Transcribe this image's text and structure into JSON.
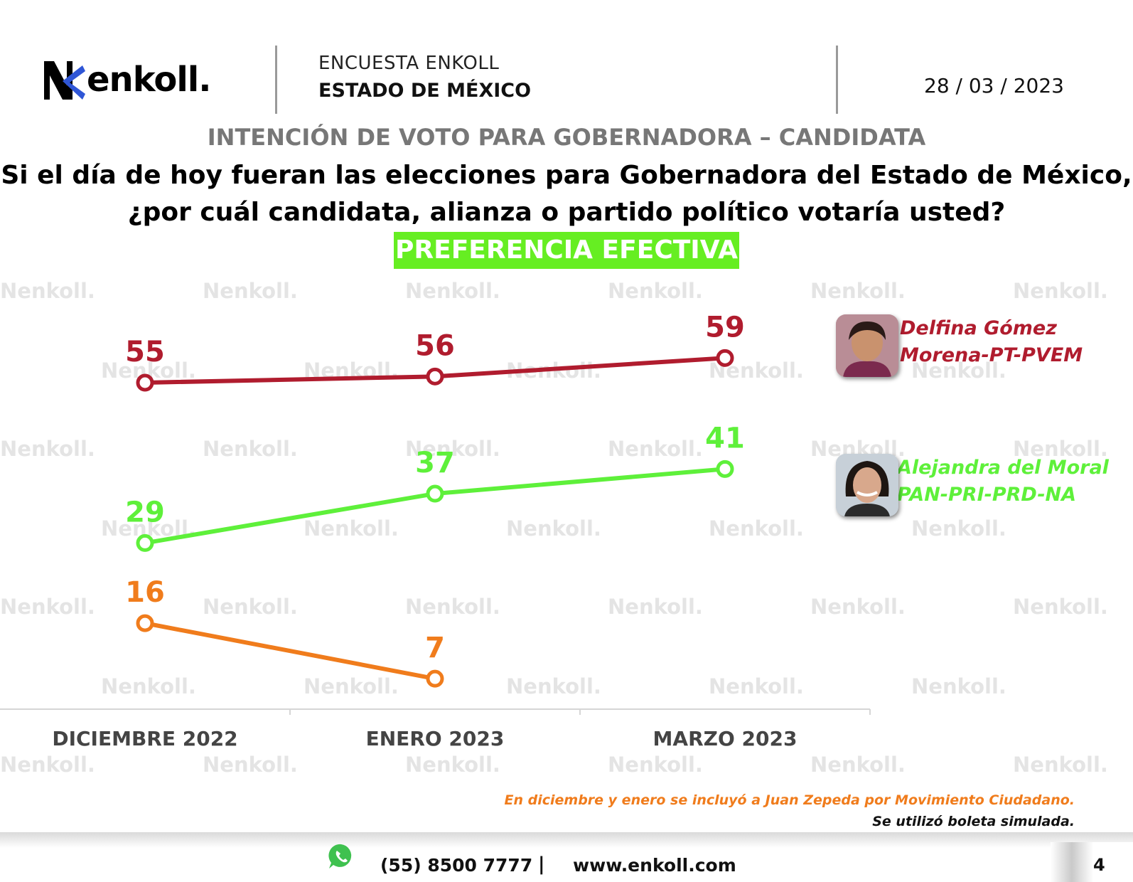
{
  "header": {
    "brand": "enkoll.",
    "survey_line": "ENCUESTA ENKOLL",
    "region_line": "ESTADO DE MÉXICO",
    "date": "28 / 03 / 2023"
  },
  "section_title": "INTENCIÓN DE VOTO PARA GOBERNADORA – CANDIDATA",
  "question": {
    "line1": "Si el día de hoy fueran las elecciones para Gobernadora del Estado de México,",
    "line2": "¿por cuál candidata, alianza o partido político votaría usted?"
  },
  "badge": "PREFERENCIA EFECTIVA",
  "watermark_text": "enkoll.",
  "chart_data": {
    "type": "line",
    "title": "PREFERENCIA EFECTIVA",
    "categories": [
      "DICIEMBRE 2022",
      "ENERO 2023",
      "MARZO 2023"
    ],
    "ylim": [
      0,
      65
    ],
    "grid": false,
    "series": [
      {
        "name": "Delfina Gómez",
        "coalition": "Morena-PT-PVEM",
        "color": "#b01c2e",
        "values": [
          55,
          56,
          59
        ]
      },
      {
        "name": "Alejandra del Moral",
        "coalition": "PAN-PRI-PRD-NA",
        "color": "#5ef03a",
        "values": [
          29,
          37,
          41
        ]
      },
      {
        "name": "Juan Zepeda",
        "color": "#f07c1c",
        "values": [
          16,
          7,
          null
        ]
      }
    ]
  },
  "notes": {
    "line1": "En diciembre y enero se incluyó a Juan Zepeda por Movimiento Ciudadano.",
    "line2": "Se utilizó boleta simulada."
  },
  "footer": {
    "phone": "(55) 8500 7777",
    "separator": "|",
    "website": "www.enkoll.com",
    "page_number": "4"
  },
  "icons": {
    "whatsapp": "whatsapp-icon",
    "logo": "enkoll-logo-icon"
  }
}
